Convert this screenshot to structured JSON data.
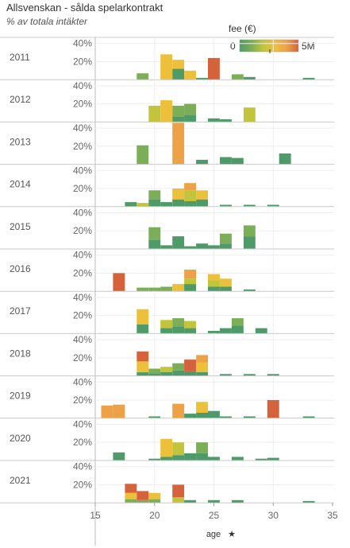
{
  "title": "Allsvenskan - sålda spelarkontrakt",
  "subtitle": "% av totala intäkter",
  "legend": {
    "title": "fee (€)",
    "min_label": "0",
    "max_label": "5M",
    "colors": [
      "#4e9a68",
      "#7cae58",
      "#c2c43c",
      "#ecc03a",
      "#eda248",
      "#d4633c"
    ]
  },
  "x_axis": {
    "label": "age",
    "ticks": [
      15,
      20,
      25,
      30,
      35
    ],
    "range": [
      15,
      35
    ]
  },
  "y_axis": {
    "ticks": [
      "20%",
      "40%"
    ],
    "range": [
      0,
      45
    ]
  },
  "chart_data": {
    "type": "bar",
    "note": "stacked histograms per year; each bar = age bin, segments colored by fee tier (0 = low fee green … 5 = high fee red)",
    "panels": [
      {
        "year": "2011",
        "bars": [
          {
            "x": 19,
            "segments": [
              [
                7,
                1
              ]
            ]
          },
          {
            "x": 21,
            "segments": [
              [
                28,
                3
              ]
            ]
          },
          {
            "x": 22,
            "segments": [
              [
                12,
                0
              ],
              [
                10,
                3
              ]
            ]
          },
          {
            "x": 23,
            "segments": [
              [
                10,
                3
              ]
            ]
          },
          {
            "x": 24,
            "segments": [
              [
                2,
                0
              ]
            ]
          },
          {
            "x": 25,
            "segments": [
              [
                24,
                5
              ]
            ]
          },
          {
            "x": 27,
            "segments": [
              [
                6,
                1
              ]
            ]
          },
          {
            "x": 28,
            "segments": [
              [
                3,
                0
              ]
            ]
          },
          {
            "x": 33,
            "segments": [
              [
                2,
                0
              ]
            ]
          }
        ]
      },
      {
        "year": "2012",
        "bars": [
          {
            "x": 20,
            "segments": [
              [
                18,
                2
              ]
            ]
          },
          {
            "x": 21,
            "segments": [
              [
                24,
                3
              ]
            ]
          },
          {
            "x": 22,
            "segments": [
              [
                6,
                0
              ],
              [
                12,
                1
              ]
            ]
          },
          {
            "x": 23,
            "segments": [
              [
                8,
                0
              ],
              [
                12,
                1
              ]
            ]
          },
          {
            "x": 25,
            "segments": [
              [
                4,
                0
              ]
            ]
          },
          {
            "x": 26,
            "segments": [
              [
                3,
                0
              ]
            ]
          },
          {
            "x": 28,
            "segments": [
              [
                16,
                2
              ]
            ]
          }
        ]
      },
      {
        "year": "2013",
        "bars": [
          {
            "x": 19,
            "segments": [
              [
                21,
                1
              ]
            ]
          },
          {
            "x": 22,
            "segments": [
              [
                46,
                4
              ]
            ]
          },
          {
            "x": 24,
            "segments": [
              [
                5,
                0
              ]
            ]
          },
          {
            "x": 26,
            "segments": [
              [
                8,
                0
              ]
            ]
          },
          {
            "x": 27,
            "segments": [
              [
                7,
                0
              ]
            ]
          },
          {
            "x": 31,
            "segments": [
              [
                12,
                0
              ]
            ]
          }
        ]
      },
      {
        "year": "2014",
        "bars": [
          {
            "x": 18,
            "segments": [
              [
                5,
                0
              ]
            ]
          },
          {
            "x": 19,
            "segments": [
              [
                4,
                2
              ]
            ]
          },
          {
            "x": 20,
            "segments": [
              [
                8,
                0
              ],
              [
                10,
                1
              ]
            ]
          },
          {
            "x": 21,
            "segments": [
              [
                5,
                0
              ]
            ]
          },
          {
            "x": 22,
            "segments": [
              [
                8,
                0
              ],
              [
                12,
                3
              ]
            ]
          },
          {
            "x": 23,
            "segments": [
              [
                6,
                0
              ],
              [
                12,
                2
              ],
              [
                8,
                4
              ]
            ]
          },
          {
            "x": 24,
            "segments": [
              [
                8,
                0
              ],
              [
                10,
                3
              ]
            ]
          },
          {
            "x": 26,
            "segments": [
              [
                2,
                0
              ]
            ]
          },
          {
            "x": 28,
            "segments": [
              [
                2,
                0
              ]
            ]
          },
          {
            "x": 30,
            "segments": [
              [
                2,
                0
              ]
            ]
          }
        ]
      },
      {
        "year": "2015",
        "bars": [
          {
            "x": 20,
            "segments": [
              [
                10,
                0
              ],
              [
                14,
                1
              ]
            ]
          },
          {
            "x": 21,
            "segments": [
              [
                4,
                0
              ]
            ]
          },
          {
            "x": 22,
            "segments": [
              [
                14,
                0
              ]
            ]
          },
          {
            "x": 23,
            "segments": [
              [
                3,
                0
              ]
            ]
          },
          {
            "x": 24,
            "segments": [
              [
                6,
                0
              ]
            ]
          },
          {
            "x": 25,
            "segments": [
              [
                4,
                0
              ]
            ]
          },
          {
            "x": 26,
            "segments": [
              [
                6,
                0
              ],
              [
                11,
                1
              ]
            ]
          },
          {
            "x": 28,
            "segments": [
              [
                14,
                0
              ],
              [
                12,
                1
              ]
            ]
          }
        ]
      },
      {
        "year": "2016",
        "bars": [
          {
            "x": 17,
            "segments": [
              [
                20,
                5
              ]
            ]
          },
          {
            "x": 19,
            "segments": [
              [
                4,
                1
              ]
            ]
          },
          {
            "x": 20,
            "segments": [
              [
                4,
                1
              ]
            ]
          },
          {
            "x": 21,
            "segments": [
              [
                5,
                1
              ]
            ]
          },
          {
            "x": 22,
            "segments": [
              [
                8,
                3
              ]
            ]
          },
          {
            "x": 23,
            "segments": [
              [
                8,
                0
              ],
              [
                6,
                2
              ],
              [
                10,
                4
              ]
            ]
          },
          {
            "x": 25,
            "segments": [
              [
                5,
                0
              ],
              [
                7,
                2
              ],
              [
                7,
                3
              ]
            ]
          },
          {
            "x": 26,
            "segments": [
              [
                5,
                0
              ],
              [
                9,
                3
              ]
            ]
          },
          {
            "x": 28,
            "segments": [
              [
                2,
                0
              ]
            ]
          }
        ]
      },
      {
        "year": "2017",
        "bars": [
          {
            "x": 19,
            "segments": [
              [
                10,
                0
              ],
              [
                17,
                3
              ]
            ]
          },
          {
            "x": 21,
            "segments": [
              [
                6,
                0
              ],
              [
                9,
                2
              ]
            ]
          },
          {
            "x": 22,
            "segments": [
              [
                8,
                0
              ],
              [
                9,
                1
              ]
            ]
          },
          {
            "x": 23,
            "segments": [
              [
                6,
                0
              ],
              [
                8,
                2
              ]
            ]
          },
          {
            "x": 25,
            "segments": [
              [
                3,
                0
              ]
            ]
          },
          {
            "x": 26,
            "segments": [
              [
                6,
                0
              ]
            ]
          },
          {
            "x": 27,
            "segments": [
              [
                9,
                0
              ],
              [
                8,
                1
              ]
            ]
          },
          {
            "x": 29,
            "segments": [
              [
                6,
                0
              ]
            ]
          }
        ]
      },
      {
        "year": "2018",
        "bars": [
          {
            "x": 19,
            "segments": [
              [
                4,
                0
              ],
              [
                12,
                3
              ],
              [
                11,
                5
              ]
            ]
          },
          {
            "x": 20,
            "segments": [
              [
                3,
                0
              ],
              [
                5,
                1
              ]
            ]
          },
          {
            "x": 21,
            "segments": [
              [
                4,
                0
              ],
              [
                6,
                2
              ]
            ]
          },
          {
            "x": 22,
            "segments": [
              [
                6,
                0
              ],
              [
                8,
                1
              ]
            ]
          },
          {
            "x": 23,
            "segments": [
              [
                5,
                0
              ],
              [
                13,
                5
              ]
            ]
          },
          {
            "x": 24,
            "segments": [
              [
                4,
                0
              ],
              [
                11,
                3
              ],
              [
                8,
                4
              ]
            ]
          },
          {
            "x": 26,
            "segments": [
              [
                2,
                0
              ]
            ]
          },
          {
            "x": 28,
            "segments": [
              [
                2,
                0
              ]
            ]
          },
          {
            "x": 30,
            "segments": [
              [
                2,
                0
              ]
            ]
          }
        ]
      },
      {
        "year": "2019",
        "bars": [
          {
            "x": 16,
            "segments": [
              [
                14,
                4
              ]
            ]
          },
          {
            "x": 17,
            "segments": [
              [
                15,
                4
              ]
            ]
          },
          {
            "x": 20,
            "segments": [
              [
                2,
                0
              ]
            ]
          },
          {
            "x": 22,
            "segments": [
              [
                16,
                4
              ]
            ]
          },
          {
            "x": 23,
            "segments": [
              [
                5,
                0
              ]
            ]
          },
          {
            "x": 24,
            "segments": [
              [
                6,
                0
              ],
              [
                12,
                3
              ]
            ]
          },
          {
            "x": 25,
            "segments": [
              [
                8,
                0
              ]
            ]
          },
          {
            "x": 26,
            "segments": [
              [
                2,
                0
              ]
            ]
          },
          {
            "x": 28,
            "segments": [
              [
                2,
                0
              ]
            ]
          },
          {
            "x": 30,
            "segments": [
              [
                20,
                5
              ]
            ]
          },
          {
            "x": 33,
            "segments": [
              [
                2,
                0
              ]
            ]
          }
        ]
      },
      {
        "year": "2020",
        "bars": [
          {
            "x": 17,
            "segments": [
              [
                9,
                0
              ]
            ]
          },
          {
            "x": 20,
            "segments": [
              [
                2,
                0
              ]
            ]
          },
          {
            "x": 21,
            "segments": [
              [
                4,
                0
              ],
              [
                20,
                3
              ]
            ]
          },
          {
            "x": 22,
            "segments": [
              [
                6,
                0
              ],
              [
                14,
                2
              ]
            ]
          },
          {
            "x": 23,
            "segments": [
              [
                8,
                0
              ]
            ]
          },
          {
            "x": 24,
            "segments": [
              [
                8,
                0
              ],
              [
                12,
                1
              ]
            ]
          },
          {
            "x": 25,
            "segments": [
              [
                4,
                0
              ]
            ]
          },
          {
            "x": 27,
            "segments": [
              [
                4,
                0
              ]
            ]
          },
          {
            "x": 29,
            "segments": [
              [
                2,
                0
              ]
            ]
          },
          {
            "x": 30,
            "segments": [
              [
                3,
                0
              ]
            ]
          }
        ]
      },
      {
        "year": "2021",
        "bars": [
          {
            "x": 18,
            "segments": [
              [
                4,
                1
              ],
              [
                7,
                3
              ],
              [
                10,
                5
              ]
            ]
          },
          {
            "x": 19,
            "segments": [
              [
                3,
                1
              ],
              [
                10,
                5
              ]
            ]
          },
          {
            "x": 20,
            "segments": [
              [
                4,
                1
              ],
              [
                7,
                3
              ]
            ]
          },
          {
            "x": 22,
            "segments": [
              [
                6,
                2
              ],
              [
                14,
                5
              ]
            ]
          },
          {
            "x": 23,
            "segments": [
              [
                3,
                0
              ]
            ]
          },
          {
            "x": 25,
            "segments": [
              [
                3,
                0
              ]
            ]
          },
          {
            "x": 27,
            "segments": [
              [
                3,
                0
              ]
            ]
          },
          {
            "x": 33,
            "segments": [
              [
                2,
                0
              ]
            ]
          }
        ]
      }
    ]
  }
}
